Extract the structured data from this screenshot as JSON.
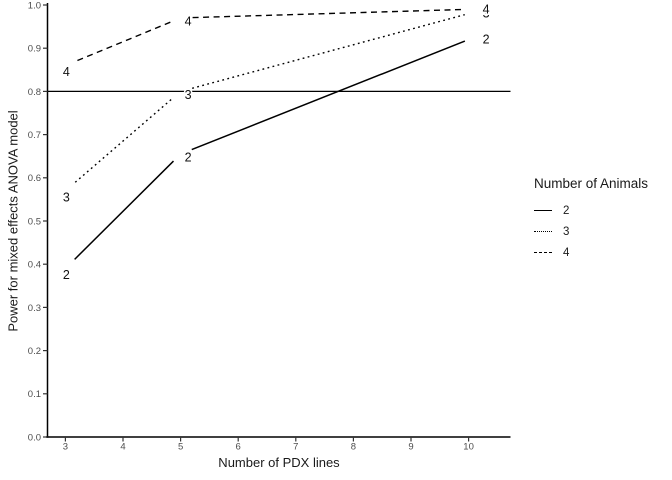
{
  "chart_data": {
    "type": "line",
    "title": "",
    "xlabel": "Number of PDX lines",
    "ylabel": "Power for mixed effects ANOVA model",
    "xlim": [
      3,
      10
    ],
    "ylim": [
      0.0,
      1.0
    ],
    "grid": false,
    "background_color": "#ffffff",
    "line_color": "#000000",
    "tick_label_color": "#4d4d4d",
    "x": [
      3,
      5,
      10
    ],
    "series": [
      {
        "name": "2",
        "dash": "solid",
        "values": [
          0.39,
          0.655,
          0.92
        ]
      },
      {
        "name": "3",
        "dash": "dotted",
        "values": [
          0.57,
          0.8,
          0.98
        ]
      },
      {
        "name": "4",
        "dash": "dashed",
        "values": [
          0.86,
          0.97,
          0.99
        ]
      }
    ],
    "reference_line_y": 0.8,
    "xticks": [
      "3",
      "4",
      "5",
      "6",
      "7",
      "8",
      "9",
      "10"
    ],
    "yticks": [
      "0.0",
      "0.1",
      "0.2",
      "0.3",
      "0.4",
      "0.5",
      "0.6",
      "0.7",
      "0.8",
      "0.9",
      "1.0"
    ],
    "legend": {
      "title": "Number of Animals",
      "position": "right",
      "entries": [
        {
          "label": "2",
          "dash": "solid"
        },
        {
          "label": "3",
          "dash": "dotted"
        },
        {
          "label": "4",
          "dash": "dashed"
        }
      ]
    }
  }
}
